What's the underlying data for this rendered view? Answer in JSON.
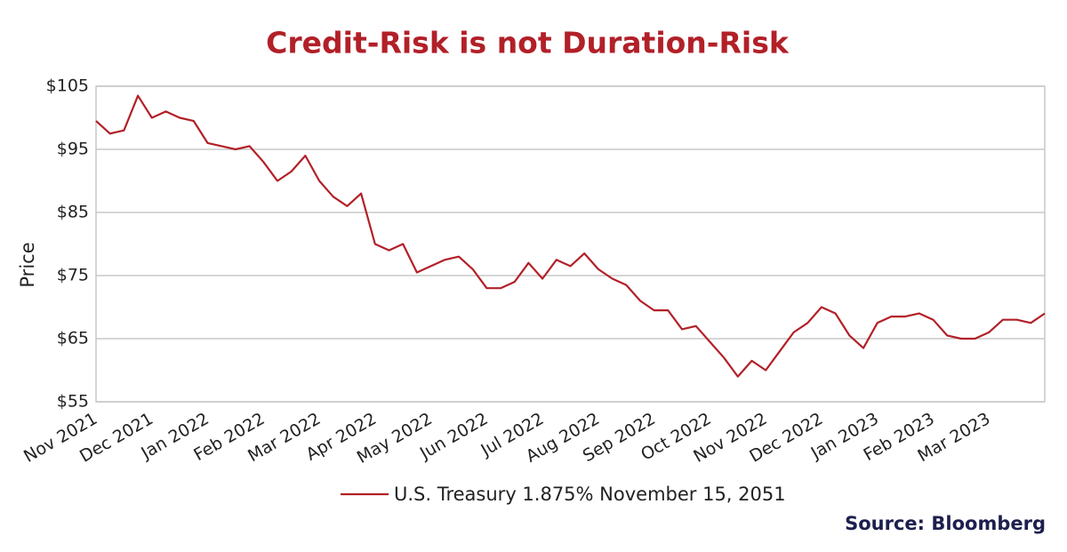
{
  "chart_data": {
    "type": "line",
    "title": "Credit-Risk is not Duration-Risk",
    "y_label": "Price",
    "source": "Source: Bloomberg",
    "categories": [
      "Nov 2021",
      null,
      null,
      null,
      "Dec 2021",
      null,
      null,
      null,
      "Jan 2022",
      null,
      null,
      null,
      "Feb 2022",
      null,
      null,
      null,
      "Mar 2022",
      null,
      null,
      null,
      "Apr 2022",
      null,
      null,
      null,
      "May 2022",
      null,
      null,
      null,
      "Jun 2022",
      null,
      null,
      null,
      "Jul 2022",
      null,
      null,
      null,
      "Aug 2022",
      null,
      null,
      null,
      "Sep 2022",
      null,
      null,
      null,
      "Oct 2022",
      null,
      null,
      null,
      "Nov 2022",
      null,
      null,
      null,
      "Dec 2022",
      null,
      null,
      null,
      "Jan 2023",
      null,
      null,
      null,
      "Feb 2023",
      null,
      null,
      null,
      "Mar 2023",
      null,
      null,
      null,
      null
    ],
    "series": [
      {
        "name": "U.S. Treasury 1.875% November 15, 2051",
        "color": "#b22028",
        "values": [
          99.5,
          97.5,
          98,
          103.5,
          100,
          101,
          100,
          99.5,
          96,
          95.5,
          95,
          95.5,
          93,
          90,
          91.5,
          94,
          90,
          87.5,
          86,
          88,
          80,
          79,
          80,
          75.5,
          76.5,
          77.5,
          78,
          76,
          73,
          73,
          74,
          77,
          74.5,
          77.5,
          76.5,
          78.5,
          76,
          74.5,
          73.5,
          71,
          69.5,
          69.5,
          66.5,
          67,
          64.5,
          62,
          59,
          61.5,
          60,
          63,
          66,
          67.5,
          70,
          69,
          65.5,
          63.5,
          67.5,
          68.5,
          68.5,
          69,
          68,
          65.5,
          65,
          65,
          66,
          68,
          68,
          67.5,
          69
        ]
      }
    ],
    "ylim": [
      55,
      105
    ],
    "yticks": [
      {
        "value": 55,
        "label": "$55"
      },
      {
        "value": 65,
        "label": "$65"
      },
      {
        "value": 75,
        "label": "$75"
      },
      {
        "value": 85,
        "label": "$85"
      },
      {
        "value": 95,
        "label": "$95"
      },
      {
        "value": 105,
        "label": "$105"
      }
    ],
    "grid": true,
    "legend": "bottom"
  }
}
